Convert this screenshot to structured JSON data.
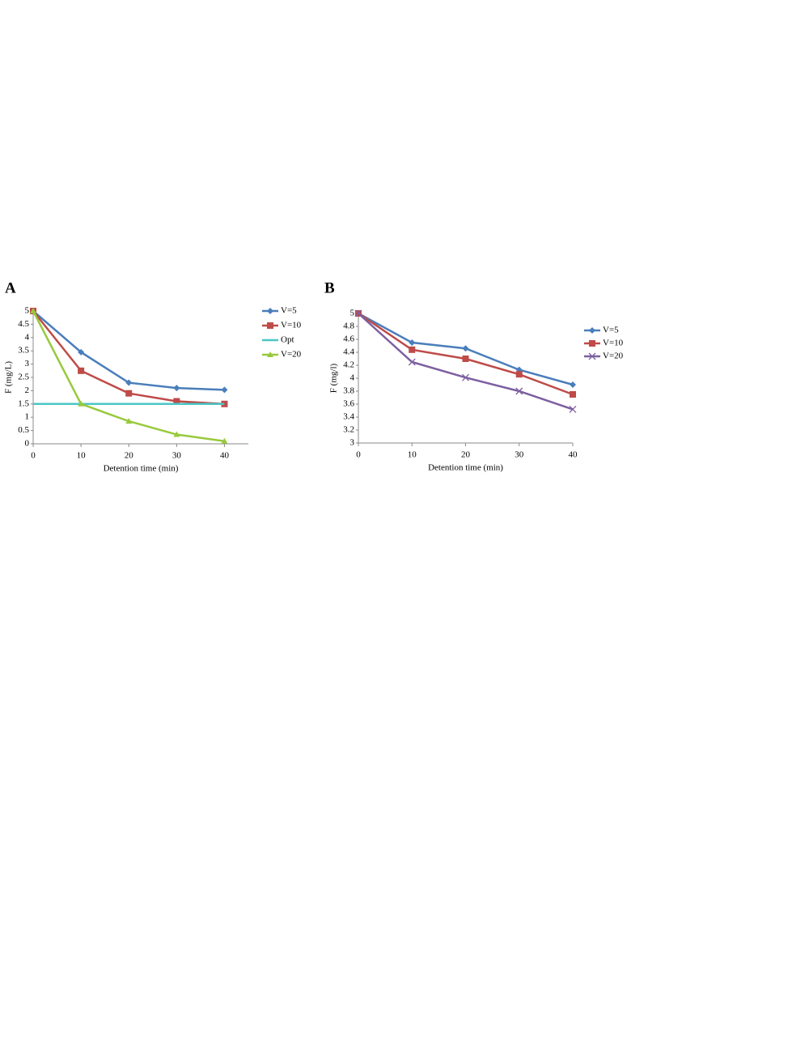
{
  "chart_data": [
    {
      "type": "line",
      "title": "A",
      "xlabel": "Detention time (min)",
      "ylabel": "F (mg/L)",
      "x": [
        0,
        10,
        20,
        30,
        40
      ],
      "xlim": [
        0,
        45
      ],
      "xticks": [
        0,
        10,
        20,
        30,
        40
      ],
      "ylim": [
        0,
        5
      ],
      "yticks": [
        0,
        0.5,
        1,
        1.5,
        2,
        2.5,
        3,
        3.5,
        4,
        4.5,
        5
      ],
      "grid": false,
      "legend": "right",
      "series": [
        {
          "name": "V=5",
          "color": "#4a7ebb",
          "marker": "diamond",
          "values": [
            5,
            3.45,
            2.3,
            2.1,
            2.03
          ]
        },
        {
          "name": "V=10",
          "color": "#be4b48",
          "marker": "square",
          "values": [
            5,
            2.75,
            1.9,
            1.6,
            1.5
          ]
        },
        {
          "name": "Opt",
          "color": "#4bc6c6",
          "marker": "none",
          "values": [
            1.5,
            1.5,
            1.5,
            1.5,
            1.5
          ]
        },
        {
          "name": "V=20",
          "color": "#98c93c",
          "marker": "triangle",
          "values": [
            5,
            1.5,
            0.85,
            0.35,
            0.1
          ]
        }
      ]
    },
    {
      "type": "line",
      "title": "B",
      "xlabel": "Detention time (min)",
      "ylabel": "F (mg/l)",
      "x": [
        0,
        10,
        20,
        30,
        40
      ],
      "xlim": [
        0,
        40
      ],
      "xticks": [
        0,
        10,
        20,
        30,
        40
      ],
      "ylim": [
        3,
        5
      ],
      "yticks": [
        3,
        3.2,
        3.4,
        3.6,
        3.8,
        4,
        4.2,
        4.4,
        4.6,
        4.8,
        5
      ],
      "grid": false,
      "legend": "right",
      "series": [
        {
          "name": "V=5",
          "color": "#4a7ebb",
          "marker": "diamond",
          "values": [
            5,
            4.55,
            4.46,
            4.13,
            3.9
          ]
        },
        {
          "name": "V=10",
          "color": "#be4b48",
          "marker": "square",
          "values": [
            5,
            4.44,
            4.3,
            4.06,
            3.75
          ]
        },
        {
          "name": "V=20",
          "color": "#7d5fa0",
          "marker": "x",
          "values": [
            5,
            4.25,
            4.01,
            3.8,
            3.52
          ]
        }
      ]
    }
  ]
}
